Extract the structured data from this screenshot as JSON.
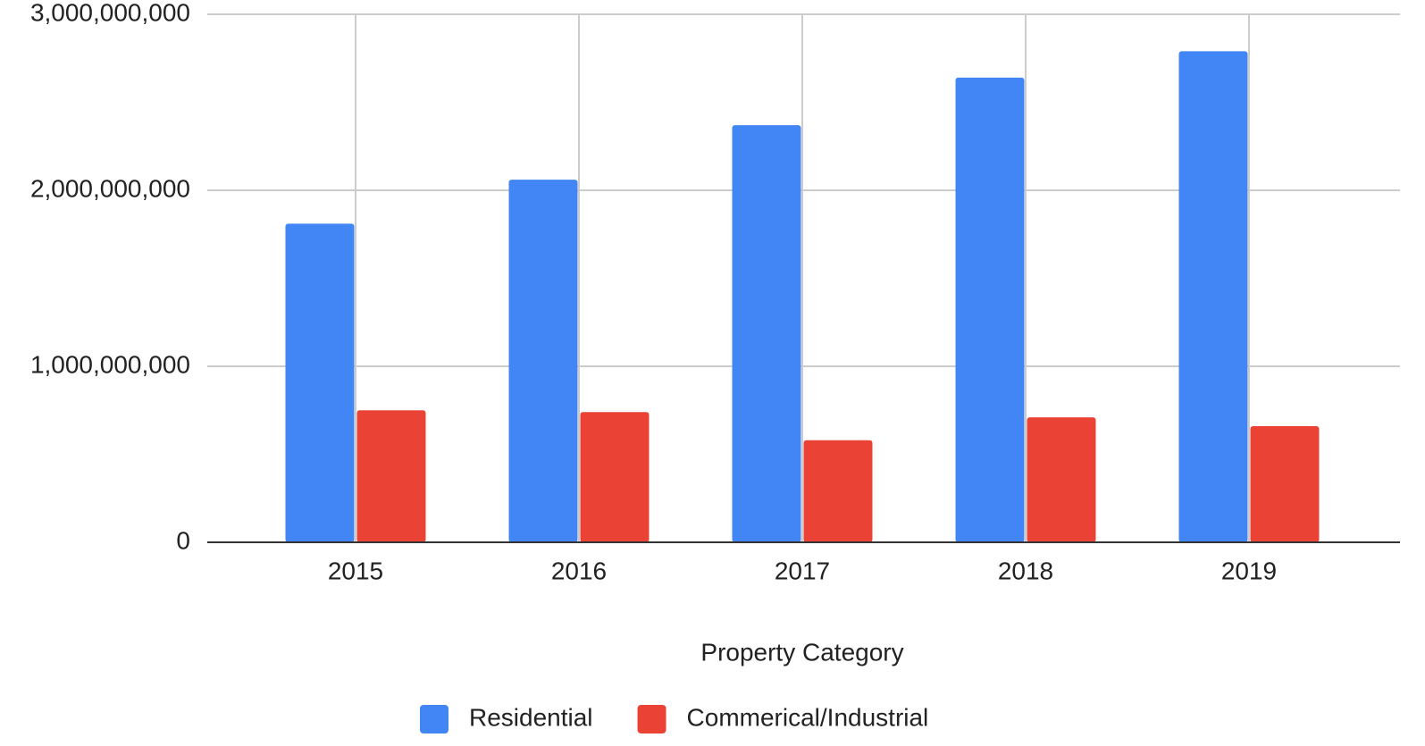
{
  "chart_data": {
    "type": "bar",
    "x_label": "Property Category",
    "categories": [
      "2015",
      "2016",
      "2017",
      "2018",
      "2019"
    ],
    "series": [
      {
        "name": "Residential",
        "color": "#4285f4",
        "values": [
          1810000000,
          2060000000,
          2370000000,
          2640000000,
          2790000000
        ]
      },
      {
        "name": "Commerical/Industrial",
        "color": "#ea4335",
        "values": [
          750000000,
          740000000,
          580000000,
          710000000,
          660000000
        ]
      }
    ],
    "ylim": [
      0,
      3000000000
    ],
    "yticks": [
      0,
      {
        "value": 1000000000,
        "label": "1,000,000,000"
      },
      {
        "value": 2000000000,
        "label": "2,000,000,000"
      },
      {
        "value": 3000000000,
        "label": "3,000,000,000"
      }
    ],
    "grid": true,
    "legend": "bottom"
  }
}
